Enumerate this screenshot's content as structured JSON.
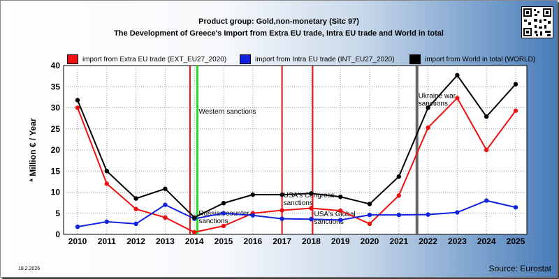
{
  "header": {
    "title_line1": "Product group: Gold,non-monetary (Sitc 97)",
    "title_line2": "The Development of Greece's Import from Extra EU trade, Intra EU trade and World in total"
  },
  "footer": {
    "date": "18.2.2026",
    "source": "Source: Eurostat"
  },
  "chart_data": {
    "type": "line",
    "ylabel": "* Million € / Year",
    "ylim": [
      0,
      40
    ],
    "yticks": [
      "0",
      "5",
      "10",
      "15",
      "20",
      "25",
      "30",
      "35",
      "40"
    ],
    "grid": true,
    "legend_position": "top",
    "categories": [
      "2010",
      "2011",
      "2012",
      "2013",
      "2014",
      "2015",
      "2016",
      "2017",
      "2018",
      "2019",
      "2020",
      "2021",
      "2022",
      "2023",
      "2024",
      "2025"
    ],
    "series": [
      {
        "name": "import from Extra EU trade (EXT_EU27_2020)",
        "color": "#ee1111",
        "values": [
          30,
          12,
          6,
          4,
          0.5,
          2,
          5,
          5.7,
          6.2,
          5.6,
          2.5,
          9.2,
          25.3,
          32.3,
          20,
          29.3
        ]
      },
      {
        "name": "import from Intra EU trade (INT_EU27_2020)",
        "color": "#1122dd",
        "values": [
          1.8,
          3,
          2.5,
          7,
          3.7,
          5,
          4.5,
          3.7,
          3.6,
          3.4,
          4.6,
          4.6,
          4.7,
          5.2,
          8,
          6.4
        ]
      },
      {
        "name": "import from World in total (WORLD)",
        "color": "#000000",
        "values": [
          31.8,
          15,
          8.5,
          10.8,
          4,
          7.4,
          9.4,
          9.4,
          9.7,
          8.9,
          7.2,
          13.7,
          30,
          37.7,
          27.9,
          35.6
        ]
      }
    ],
    "events": [
      {
        "x": 2013.85,
        "color": "#dd1111",
        "label": ""
      },
      {
        "x": 2014.1,
        "color": "#22dd22",
        "label": "Western sanctions",
        "label_y": 28.6
      },
      {
        "x": 2014.1,
        "color": null,
        "label": "Russian counter sanctions",
        "label_y": 4.5
      },
      {
        "x": 2017.0,
        "color": "#dd1111",
        "label": "USA's Congress sanctions",
        "label_y": 8.8
      },
      {
        "x": 2018.05,
        "color": "#dd1111",
        "label": "USA's Global sanctions",
        "label_y": 4.3
      },
      {
        "x": 2021.62,
        "color": "#666666",
        "label": "Ukraine war sanctions",
        "label_y": 32.3
      }
    ]
  }
}
